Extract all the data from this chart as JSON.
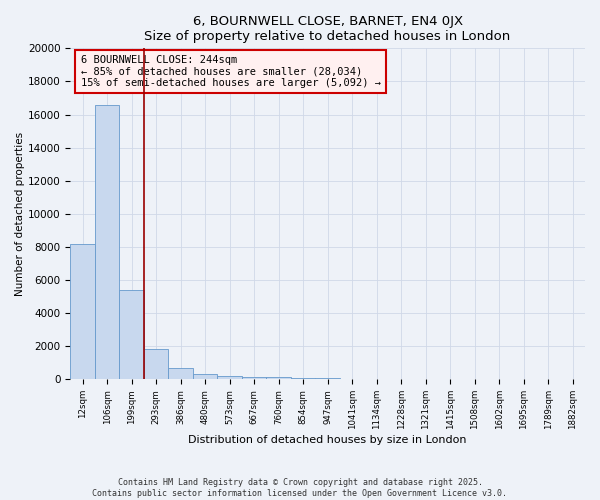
{
  "title1": "6, BOURNWELL CLOSE, BARNET, EN4 0JX",
  "title2": "Size of property relative to detached houses in London",
  "xlabel": "Distribution of detached houses by size in London",
  "ylabel": "Number of detached properties",
  "bar_color": "#c8d8ee",
  "bar_edge_color": "#6699cc",
  "categories": [
    "12sqm",
    "106sqm",
    "199sqm",
    "293sqm",
    "386sqm",
    "480sqm",
    "573sqm",
    "667sqm",
    "760sqm",
    "854sqm",
    "947sqm",
    "1041sqm",
    "1134sqm",
    "1228sqm",
    "1321sqm",
    "1415sqm",
    "1508sqm",
    "1602sqm",
    "1695sqm",
    "1789sqm",
    "1882sqm"
  ],
  "values": [
    8200,
    16600,
    5400,
    1850,
    700,
    330,
    220,
    145,
    115,
    85,
    65,
    45,
    35,
    25,
    18,
    12,
    9,
    7,
    5,
    4,
    3
  ],
  "red_line_x": 2.5,
  "annotation_title": "6 BOURNWELL CLOSE: 244sqm",
  "annotation_line1": "← 85% of detached houses are smaller (28,034)",
  "annotation_line2": "15% of semi-detached houses are larger (5,092) →",
  "annotation_box_color": "#fff0f0",
  "annotation_edge_color": "#cc0000",
  "ylim": [
    0,
    20000
  ],
  "yticks": [
    0,
    2000,
    4000,
    6000,
    8000,
    10000,
    12000,
    14000,
    16000,
    18000,
    20000
  ],
  "footer1": "Contains HM Land Registry data © Crown copyright and database right 2025.",
  "footer2": "Contains public sector information licensed under the Open Government Licence v3.0.",
  "bg_color": "#eef2f8",
  "plot_bg_color": "#eef2f8",
  "grid_color": "#d0d8e8"
}
